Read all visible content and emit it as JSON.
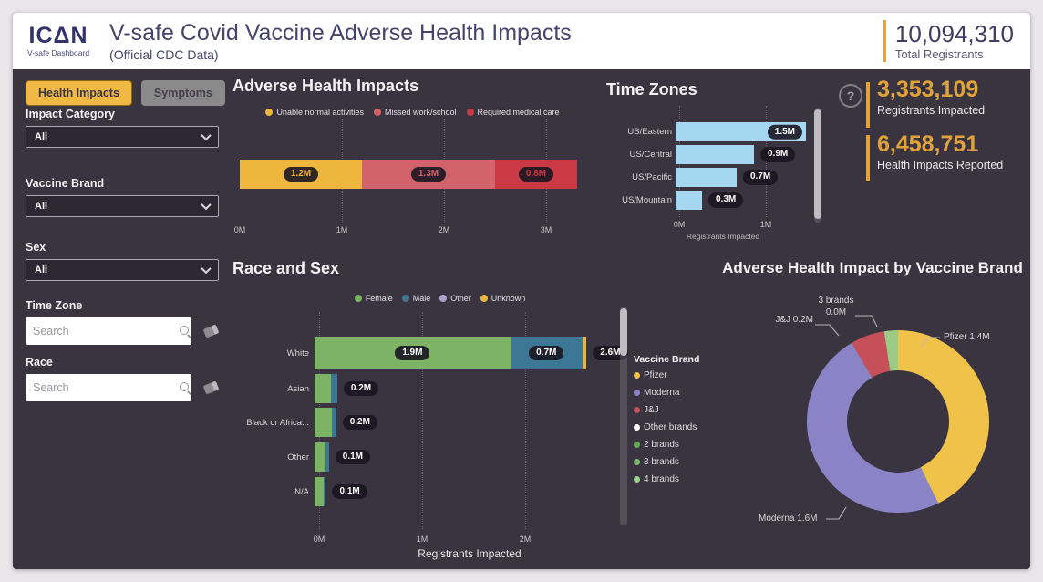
{
  "header": {
    "logo_title": "ICΔN",
    "logo_subtitle": "V-safe Dashboard",
    "title": "V-safe Covid Vaccine Adverse Health Impacts",
    "subtitle": "(Official CDC Data)",
    "total_registrants_value": "10,094,310",
    "total_registrants_label": "Total Registrants"
  },
  "sidebar": {
    "tabs": [
      {
        "label": "Health Impacts",
        "active": true
      },
      {
        "label": "Symptoms",
        "active": false
      }
    ],
    "filters": [
      {
        "label": "Impact Category",
        "type": "dropdown",
        "value": "All"
      },
      {
        "label": "Vaccine Brand",
        "type": "dropdown",
        "value": "All"
      },
      {
        "label": "Sex",
        "type": "dropdown",
        "value": "All"
      },
      {
        "label": "Time Zone",
        "type": "search",
        "placeholder": "Search"
      },
      {
        "label": "Race",
        "type": "search",
        "placeholder": "Search"
      }
    ]
  },
  "stats": {
    "registrants_impacted": {
      "value": "3,353,109",
      "label": "Registrants Impacted"
    },
    "health_impacts_reported": {
      "value": "6,458,751",
      "label": "Health Impacts Reported"
    }
  },
  "ui": {
    "help_glyph": "?"
  },
  "colors": {
    "background": "#39343F",
    "accent_gold": "#E2A33C",
    "header_navy": "#45446A",
    "tab_active": "#F0B845",
    "timezone_bar": "#A5D7F0"
  },
  "chart_data": [
    {
      "id": "adverse_health_impacts",
      "type": "bar",
      "orientation": "horizontal-stacked",
      "title": "Adverse Health Impacts",
      "series": [
        {
          "name": "Unable normal activities",
          "value": 1.2,
          "label": "1.2M",
          "color": "#EFB63D"
        },
        {
          "name": "Missed work/school",
          "value": 1.3,
          "label": "1.3M",
          "color": "#D2626B"
        },
        {
          "name": "Required medical care",
          "value": 0.8,
          "label": "0.8M",
          "color": "#CB3A44"
        }
      ],
      "x_ticks": [
        "0M",
        "1M",
        "2M",
        "3M"
      ],
      "xlim": [
        0,
        3.3
      ],
      "unit": "M",
      "grid": "dotted-vertical",
      "legend_position": "top-center"
    },
    {
      "id": "time_zones",
      "type": "bar",
      "orientation": "horizontal",
      "title": "Time Zones",
      "categories": [
        "US/Eastern",
        "US/Central",
        "US/Pacific",
        "US/Mountain"
      ],
      "values": [
        1.5,
        0.9,
        0.7,
        0.3
      ],
      "labels": [
        "1.5M",
        "0.9M",
        "0.7M",
        "0.3M"
      ],
      "bar_color": "#A5D7F0",
      "x_ticks": [
        "0M",
        "1M"
      ],
      "xlim": [
        0,
        1.7
      ],
      "xlabel": "Registrants Impacted",
      "grid": "dotted-vertical"
    },
    {
      "id": "race_and_sex",
      "type": "bar",
      "orientation": "horizontal-stacked",
      "title": "Race and Sex",
      "legend": [
        {
          "name": "Female",
          "color": "#7CB364"
        },
        {
          "name": "Male",
          "color": "#3C7895"
        },
        {
          "name": "Other",
          "color": "#A9A3CF"
        },
        {
          "name": "Unknown",
          "color": "#E9B63D"
        }
      ],
      "categories": [
        "White",
        "Asian",
        "Black or Africa...",
        "Other",
        "N/A"
      ],
      "rows": [
        {
          "segments": [
            {
              "series": "Female",
              "value": 1.9,
              "label": "1.9M"
            },
            {
              "series": "Male",
              "value": 0.7,
              "label": "0.7M"
            },
            {
              "series": "Unknown",
              "value": 0.04,
              "label": ""
            }
          ],
          "total_label": "2.6M"
        },
        {
          "segments": [
            {
              "series": "Female",
              "value": 0.16,
              "label": ""
            },
            {
              "series": "Male",
              "value": 0.06,
              "label": ""
            }
          ],
          "total_label": "0.2M"
        },
        {
          "segments": [
            {
              "series": "Female",
              "value": 0.17,
              "label": ""
            },
            {
              "series": "Male",
              "value": 0.04,
              "label": ""
            }
          ],
          "total_label": "0.2M"
        },
        {
          "segments": [
            {
              "series": "Female",
              "value": 0.11,
              "label": ""
            },
            {
              "series": "Male",
              "value": 0.03,
              "label": ""
            }
          ],
          "total_label": "0.1M"
        },
        {
          "segments": [
            {
              "series": "Female",
              "value": 0.09,
              "label": ""
            },
            {
              "series": "Male",
              "value": 0.02,
              "label": ""
            }
          ],
          "total_label": "0.1M"
        }
      ],
      "x_ticks": [
        "0M",
        "1M",
        "2M"
      ],
      "xlim": [
        0,
        2.9
      ],
      "xlabel": "Registrants Impacted",
      "grid": "dotted-vertical",
      "legend_position": "top-center"
    },
    {
      "id": "brand_donut",
      "type": "pie",
      "title": "Adverse Health Impact by Vaccine Brand",
      "legend_title": "Vaccine Brand",
      "legend": [
        {
          "name": "Pfizer",
          "color": "#F0C24A"
        },
        {
          "name": "Moderna",
          "color": "#8A84C6"
        },
        {
          "name": "J&J",
          "color": "#C65059"
        },
        {
          "name": "Other brands",
          "color": "#FFFFFF"
        },
        {
          "name": "2 brands",
          "color": "#62A852"
        },
        {
          "name": "3 brands",
          "color": "#7CBD6A"
        },
        {
          "name": "4 brands",
          "color": "#99D488"
        }
      ],
      "slices": [
        {
          "name": "Pfizer",
          "value": 1.4,
          "label": "Pfizer 1.4M",
          "color": "#F0C24A"
        },
        {
          "name": "Moderna",
          "value": 1.6,
          "label": "Moderna 1.6M",
          "color": "#8A84C6"
        },
        {
          "name": "J&J",
          "value": 0.2,
          "label": "J&J 0.2M",
          "color": "#C65059"
        },
        {
          "name": "3 brands",
          "value": 0.08,
          "label": "3 brands",
          "label2": "0.0M",
          "color": "#9CCB85"
        }
      ]
    }
  ]
}
